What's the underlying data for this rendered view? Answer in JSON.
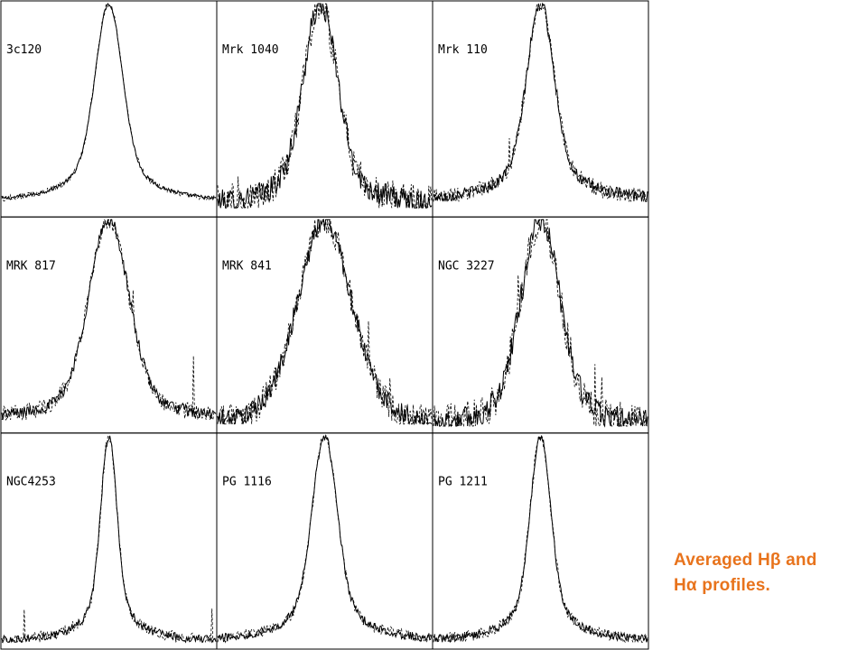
{
  "caption": {
    "line1": "Averaged Hβ and",
    "line2": "Hα profiles."
  },
  "colors": {
    "caption": "#e8731c",
    "line": "#000000",
    "background": "#ffffff"
  },
  "chart_data": {
    "type": "line",
    "layout": "3x3 grid of small-multiple line profiles, no axis ticks or tick labels",
    "series_styles": [
      "solid",
      "dashed"
    ],
    "panels": [
      {
        "label": "3c120",
        "peak_x": 0.5,
        "width": 0.06,
        "wing": 0.16,
        "baseline": 0.05,
        "noise": 0.01,
        "spikes": 0.0
      },
      {
        "label": "Mrk 1040",
        "peak_x": 0.48,
        "width": 0.075,
        "wing": 0.16,
        "baseline": 0.03,
        "noise": 0.06,
        "spikes": 0.3
      },
      {
        "label": "Mrk 110",
        "peak_x": 0.5,
        "width": 0.06,
        "wing": 0.15,
        "baseline": 0.06,
        "noise": 0.03,
        "spikes": 0.05
      },
      {
        "label": "MRK 817",
        "peak_x": 0.5,
        "width": 0.09,
        "wing": 0.16,
        "baseline": 0.05,
        "noise": 0.03,
        "spikes": 0.1
      },
      {
        "label": "MRK 841",
        "peak_x": 0.5,
        "width": 0.13,
        "wing": 0.14,
        "baseline": 0.03,
        "noise": 0.05,
        "spikes": 0.2
      },
      {
        "label": "NGC 3227",
        "peak_x": 0.5,
        "width": 0.09,
        "wing": 0.14,
        "baseline": 0.02,
        "noise": 0.06,
        "spikes": 0.3
      },
      {
        "label": "NGC4253",
        "peak_x": 0.5,
        "width": 0.035,
        "wing": 0.1,
        "baseline": 0.02,
        "noise": 0.02,
        "spikes": 0.1
      },
      {
        "label": "PG 1116",
        "peak_x": 0.5,
        "width": 0.055,
        "wing": 0.14,
        "baseline": 0.02,
        "noise": 0.02,
        "spikes": 0.05
      },
      {
        "label": "PG 1211",
        "peak_x": 0.5,
        "width": 0.045,
        "wing": 0.12,
        "baseline": 0.02,
        "noise": 0.02,
        "spikes": 0.05
      }
    ]
  }
}
